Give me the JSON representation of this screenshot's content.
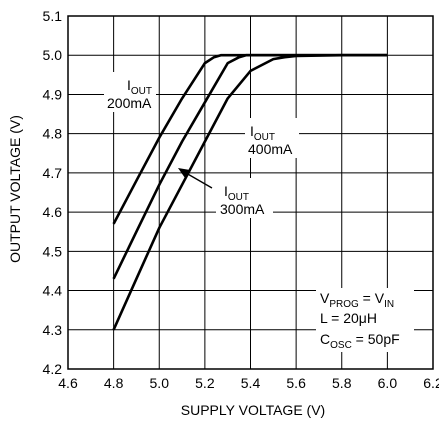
{
  "chart_data": {
    "type": "line",
    "xlabel": "SUPPLY VOLTAGE (V)",
    "ylabel": "OUTPUT VOLTAGE (V)",
    "xlim": [
      4.6,
      6.2
    ],
    "ylim": [
      4.2,
      5.1
    ],
    "x_ticks": [
      "4.6",
      "4.8",
      "5.0",
      "5.2",
      "5.4",
      "5.6",
      "5.8",
      "6.0",
      "6.2"
    ],
    "y_ticks": [
      "4.2",
      "4.3",
      "4.4",
      "4.5",
      "4.6",
      "4.7",
      "4.8",
      "4.9",
      "5.0",
      "5.1"
    ],
    "grid": true,
    "series": [
      {
        "label_main": "I",
        "label_sub": "OUT",
        "label_value": "200mA",
        "x": [
          4.8,
          4.9,
          5.0,
          5.1,
          5.2,
          5.24,
          5.27,
          5.3,
          5.4,
          5.6,
          5.8,
          6.0
        ],
        "y": [
          4.57,
          4.68,
          4.79,
          4.89,
          4.98,
          4.995,
          5.0,
          5.0,
          5.0,
          5.0,
          5.0,
          5.0
        ]
      },
      {
        "label_main": "I",
        "label_sub": "OUT",
        "label_value": "300mA",
        "x": [
          4.8,
          4.9,
          5.0,
          5.1,
          5.2,
          5.3,
          5.35,
          5.38,
          5.4,
          5.6,
          5.8,
          6.0
        ],
        "y": [
          4.43,
          4.55,
          4.67,
          4.78,
          4.88,
          4.98,
          4.995,
          5.0,
          5.0,
          5.0,
          5.0,
          5.0
        ]
      },
      {
        "label_main": "I",
        "label_sub": "OUT",
        "label_value": "400mA",
        "x": [
          4.8,
          4.9,
          5.0,
          5.1,
          5.2,
          5.3,
          5.4,
          5.5,
          5.55,
          5.6,
          5.8,
          6.0
        ],
        "y": [
          4.3,
          4.43,
          4.56,
          4.67,
          4.78,
          4.89,
          4.96,
          4.99,
          4.995,
          4.998,
          5.0,
          5.0
        ]
      }
    ],
    "conditions": [
      {
        "main": "V",
        "sub": "PROG",
        "rest": " = V",
        "sub2": "IN"
      },
      {
        "main": "L = 20μH"
      },
      {
        "main": "C",
        "sub": "OSC",
        "rest": " = 50pF"
      }
    ]
  }
}
